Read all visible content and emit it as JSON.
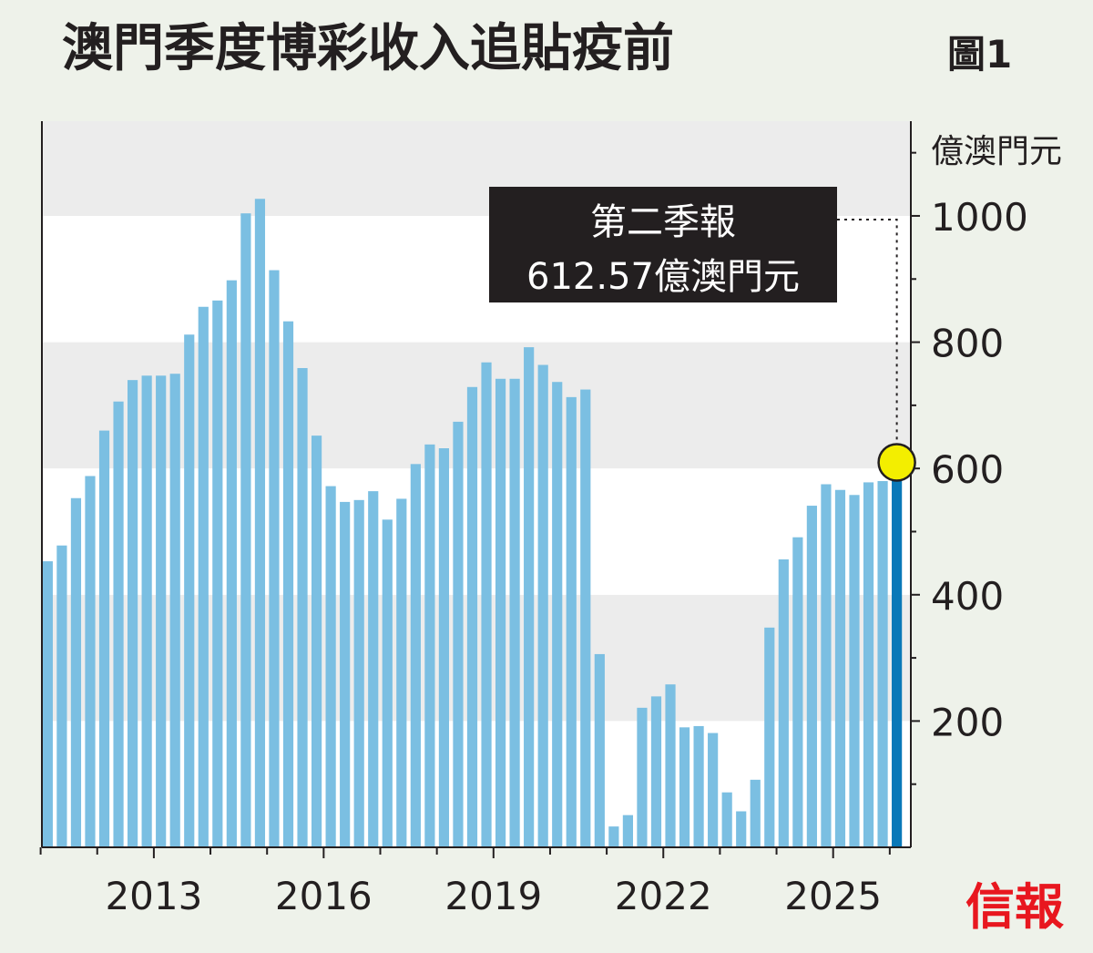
{
  "chart_data": {
    "type": "bar",
    "title": "澳門季度博彩收入追貼疫前",
    "figure_label": "圖1",
    "ylabel": "億澳門元",
    "ylim": [
      0,
      1150
    ],
    "yticks": [
      200,
      400,
      600,
      800,
      1000
    ],
    "x_tick_labels": [
      "2013",
      "2016",
      "2019",
      "2022",
      "2025"
    ],
    "annotation": {
      "line1": "第二季報",
      "line2": "612.57億澳門元"
    },
    "source": "信報",
    "grid_bands": true,
    "colors": {
      "bar": "#7bbfe2",
      "highlight_bar": "#0a78b8",
      "highlight_marker": "#f3ee00",
      "band_gray": "#ececec",
      "band_white": "#ffffff",
      "annotation_bg": "#231f20",
      "source_red": "#e8171f"
    },
    "start_period": "2011 Q1",
    "values": [
      453,
      478,
      553,
      588,
      660,
      706,
      740,
      747,
      747,
      750,
      812,
      856,
      866,
      898,
      1004,
      1027,
      914,
      833,
      759,
      652,
      572,
      547,
      550,
      564,
      519,
      552,
      607,
      638,
      632,
      674,
      729,
      768,
      742,
      742,
      792,
      764,
      737,
      713,
      725,
      306,
      33,
      51,
      221,
      239,
      258,
      190,
      192,
      181,
      87,
      57,
      107,
      348,
      456,
      491,
      541,
      575,
      566,
      558,
      578,
      580,
      612.57
    ]
  }
}
